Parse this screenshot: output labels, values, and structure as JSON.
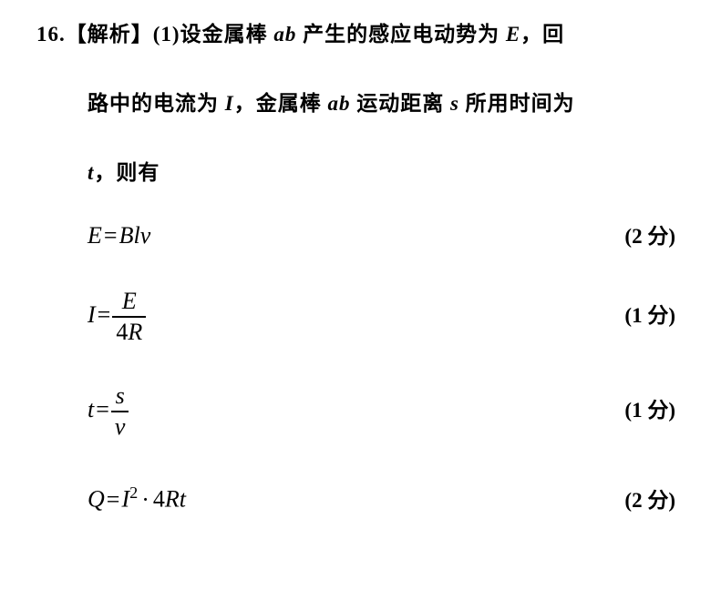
{
  "question_number": "16.",
  "analysis_label": "【解析】",
  "part1_label": "(1)",
  "intro_l1_a": "设金属棒 ",
  "intro_var_ab1": "ab",
  "intro_l1_b": " 产生的感应电动势为 ",
  "intro_var_E": "E",
  "intro_l1_c": "，回",
  "intro_l2_a": "路中的电流为 ",
  "intro_var_I": "I",
  "intro_l2_b": "，金属棒 ",
  "intro_var_ab2": "ab",
  "intro_l2_c": " 运动距离 ",
  "intro_var_s": "s",
  "intro_l2_d": " 所用时间为",
  "intro_l3": "，则有",
  "intro_var_t": "t",
  "eq1_lhs": "E",
  "eq1_rhs_B": "B",
  "eq1_rhs_l": "l",
  "eq1_rhs_v": "v",
  "eq2_lhs": "I",
  "eq2_num": "E",
  "eq2_den_4": "4",
  "eq2_den_R": "R",
  "eq3_lhs": "t",
  "eq3_num": "s",
  "eq3_den": "v",
  "eq4_lhs": "Q",
  "eq4_I": "I",
  "eq4_exp": "2",
  "eq4_4": "4",
  "eq4_R": "R",
  "eq4_t": "t",
  "score_2": "(2 分)",
  "score_1": "(1 分)",
  "fontsize_prose": 23,
  "fontsize_eq": 26,
  "fontsize_score": 23,
  "colors": {
    "text": "#000000",
    "bg": "#ffffff"
  }
}
